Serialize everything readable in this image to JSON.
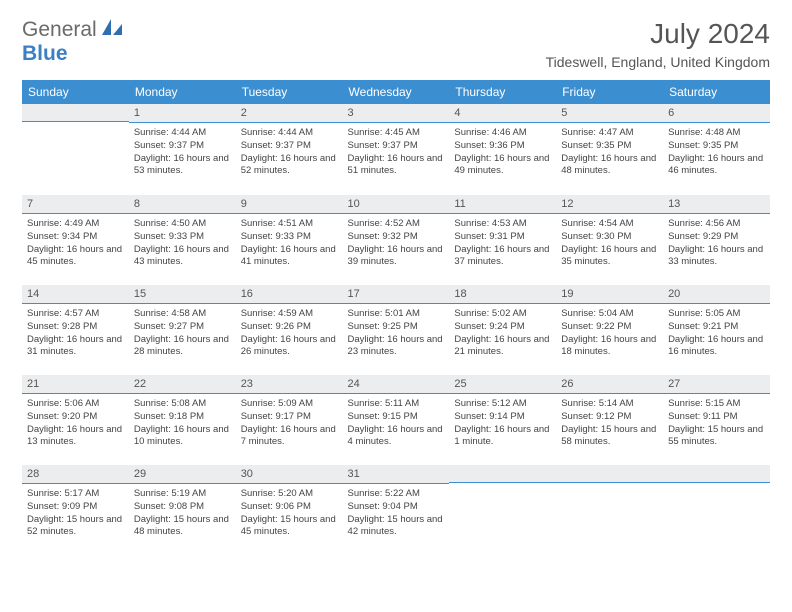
{
  "logo": {
    "word1": "General",
    "word2": "Blue"
  },
  "header": {
    "month_title": "July 2024",
    "location": "Tideswell, England, United Kingdom"
  },
  "colors": {
    "header_bg": "#3b8ed0",
    "daynum_bg": "#ebedef",
    "rule": "#3b8ed0"
  },
  "day_names": [
    "Sunday",
    "Monday",
    "Tuesday",
    "Wednesday",
    "Thursday",
    "Friday",
    "Saturday"
  ],
  "weeks": [
    [
      null,
      {
        "n": "1",
        "sunrise": "4:44 AM",
        "sunset": "9:37 PM",
        "daylight": "16 hours and 53 minutes."
      },
      {
        "n": "2",
        "sunrise": "4:44 AM",
        "sunset": "9:37 PM",
        "daylight": "16 hours and 52 minutes."
      },
      {
        "n": "3",
        "sunrise": "4:45 AM",
        "sunset": "9:37 PM",
        "daylight": "16 hours and 51 minutes."
      },
      {
        "n": "4",
        "sunrise": "4:46 AM",
        "sunset": "9:36 PM",
        "daylight": "16 hours and 49 minutes."
      },
      {
        "n": "5",
        "sunrise": "4:47 AM",
        "sunset": "9:35 PM",
        "daylight": "16 hours and 48 minutes."
      },
      {
        "n": "6",
        "sunrise": "4:48 AM",
        "sunset": "9:35 PM",
        "daylight": "16 hours and 46 minutes."
      }
    ],
    [
      {
        "n": "7",
        "sunrise": "4:49 AM",
        "sunset": "9:34 PM",
        "daylight": "16 hours and 45 minutes."
      },
      {
        "n": "8",
        "sunrise": "4:50 AM",
        "sunset": "9:33 PM",
        "daylight": "16 hours and 43 minutes."
      },
      {
        "n": "9",
        "sunrise": "4:51 AM",
        "sunset": "9:33 PM",
        "daylight": "16 hours and 41 minutes."
      },
      {
        "n": "10",
        "sunrise": "4:52 AM",
        "sunset": "9:32 PM",
        "daylight": "16 hours and 39 minutes."
      },
      {
        "n": "11",
        "sunrise": "4:53 AM",
        "sunset": "9:31 PM",
        "daylight": "16 hours and 37 minutes."
      },
      {
        "n": "12",
        "sunrise": "4:54 AM",
        "sunset": "9:30 PM",
        "daylight": "16 hours and 35 minutes."
      },
      {
        "n": "13",
        "sunrise": "4:56 AM",
        "sunset": "9:29 PM",
        "daylight": "16 hours and 33 minutes."
      }
    ],
    [
      {
        "n": "14",
        "sunrise": "4:57 AM",
        "sunset": "9:28 PM",
        "daylight": "16 hours and 31 minutes."
      },
      {
        "n": "15",
        "sunrise": "4:58 AM",
        "sunset": "9:27 PM",
        "daylight": "16 hours and 28 minutes."
      },
      {
        "n": "16",
        "sunrise": "4:59 AM",
        "sunset": "9:26 PM",
        "daylight": "16 hours and 26 minutes."
      },
      {
        "n": "17",
        "sunrise": "5:01 AM",
        "sunset": "9:25 PM",
        "daylight": "16 hours and 23 minutes."
      },
      {
        "n": "18",
        "sunrise": "5:02 AM",
        "sunset": "9:24 PM",
        "daylight": "16 hours and 21 minutes."
      },
      {
        "n": "19",
        "sunrise": "5:04 AM",
        "sunset": "9:22 PM",
        "daylight": "16 hours and 18 minutes."
      },
      {
        "n": "20",
        "sunrise": "5:05 AM",
        "sunset": "9:21 PM",
        "daylight": "16 hours and 16 minutes."
      }
    ],
    [
      {
        "n": "21",
        "sunrise": "5:06 AM",
        "sunset": "9:20 PM",
        "daylight": "16 hours and 13 minutes."
      },
      {
        "n": "22",
        "sunrise": "5:08 AM",
        "sunset": "9:18 PM",
        "daylight": "16 hours and 10 minutes."
      },
      {
        "n": "23",
        "sunrise": "5:09 AM",
        "sunset": "9:17 PM",
        "daylight": "16 hours and 7 minutes."
      },
      {
        "n": "24",
        "sunrise": "5:11 AM",
        "sunset": "9:15 PM",
        "daylight": "16 hours and 4 minutes."
      },
      {
        "n": "25",
        "sunrise": "5:12 AM",
        "sunset": "9:14 PM",
        "daylight": "16 hours and 1 minute."
      },
      {
        "n": "26",
        "sunrise": "5:14 AM",
        "sunset": "9:12 PM",
        "daylight": "15 hours and 58 minutes."
      },
      {
        "n": "27",
        "sunrise": "5:15 AM",
        "sunset": "9:11 PM",
        "daylight": "15 hours and 55 minutes."
      }
    ],
    [
      {
        "n": "28",
        "sunrise": "5:17 AM",
        "sunset": "9:09 PM",
        "daylight": "15 hours and 52 minutes."
      },
      {
        "n": "29",
        "sunrise": "5:19 AM",
        "sunset": "9:08 PM",
        "daylight": "15 hours and 48 minutes."
      },
      {
        "n": "30",
        "sunrise": "5:20 AM",
        "sunset": "9:06 PM",
        "daylight": "15 hours and 45 minutes."
      },
      {
        "n": "31",
        "sunrise": "5:22 AM",
        "sunset": "9:04 PM",
        "daylight": "15 hours and 42 minutes."
      },
      null,
      null,
      null
    ]
  ],
  "labels": {
    "sunrise": "Sunrise: ",
    "sunset": "Sunset: ",
    "daylight": "Daylight: "
  }
}
